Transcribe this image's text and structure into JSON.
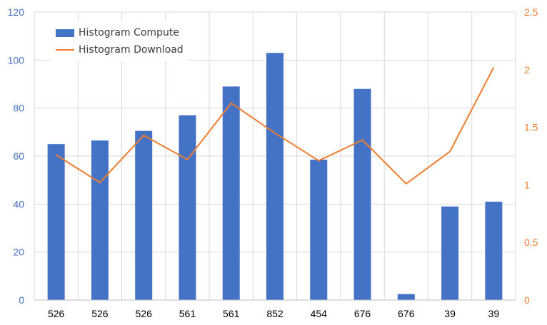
{
  "chart_data": {
    "type": "bar",
    "categories": [
      "526",
      "526",
      "526",
      "561",
      "561",
      "852",
      "454",
      "676",
      "676",
      "39",
      "39"
    ],
    "series": [
      {
        "name": "Histogram Compute",
        "type": "bar",
        "axis": "left",
        "color": "#4472C4",
        "values": [
          65,
          66.5,
          70.5,
          77,
          89,
          103,
          58.5,
          88,
          2.5,
          39,
          41
        ]
      },
      {
        "name": "Histogram Download",
        "type": "line",
        "axis": "right",
        "color": "#ED7D31",
        "values": [
          1.26,
          1.02,
          1.43,
          1.22,
          1.71,
          1.45,
          1.21,
          1.39,
          1.01,
          1.29,
          2.02
        ]
      }
    ],
    "y_left": {
      "ylim": [
        0,
        120
      ],
      "ticks": [
        "0",
        "20",
        "40",
        "60",
        "80",
        "100",
        "120"
      ],
      "color": "#4472C4"
    },
    "y_right": {
      "ylim": [
        0,
        2.5
      ],
      "ticks": [
        "0",
        "0.5",
        "1",
        "1.5",
        "2",
        "2.5"
      ],
      "color": "#ED7D31"
    },
    "grid": true,
    "legend_position": "top-left"
  }
}
